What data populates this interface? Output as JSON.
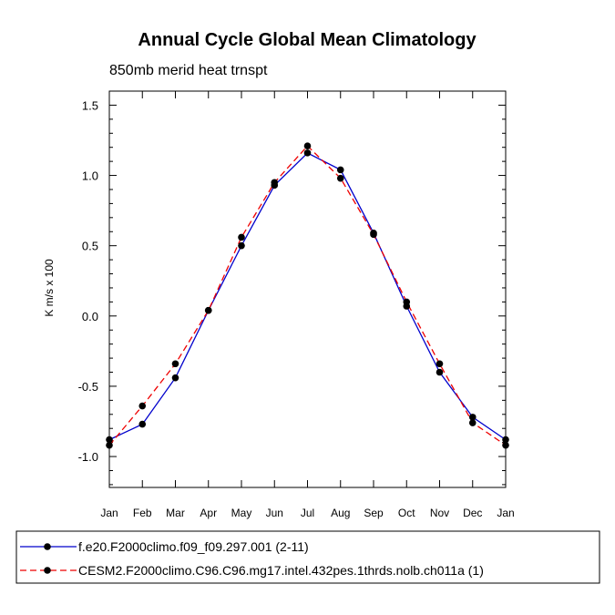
{
  "chart_data": {
    "type": "line",
    "title": "Annual Cycle Global Mean Climatology",
    "subtitle": "850mb merid heat trnspt",
    "xlabel": "",
    "ylabel": "K m/s x 100",
    "categories": [
      "Jan",
      "Feb",
      "Mar",
      "Apr",
      "May",
      "Jun",
      "Jul",
      "Aug",
      "Sep",
      "Oct",
      "Nov",
      "Dec",
      "Jan"
    ],
    "ylim": [
      -1.22,
      1.6
    ],
    "yticks": [
      1.5,
      1.0,
      0.5,
      0.0,
      -0.5,
      -1.0
    ],
    "ytick_labels": [
      "1.5",
      "1.0",
      "0.5",
      "0.0",
      "-0.5",
      "-1.0"
    ],
    "legend_position": "bottom",
    "series": [
      {
        "name": "f.e20.F2000climo.f09_f09.297.001 (2-11)",
        "color": "#0000cc",
        "dash": "solid",
        "values": [
          -0.88,
          -0.77,
          -0.44,
          0.04,
          0.5,
          0.93,
          1.16,
          1.04,
          0.59,
          0.07,
          -0.4,
          -0.72,
          -0.88
        ]
      },
      {
        "name": "CESM2.F2000climo.C96.C96.mg17.intel.432pes.1thrds.nolb.ch011a (1)",
        "color": "#ee0000",
        "dash": "dashed",
        "values": [
          -0.92,
          -0.64,
          -0.34,
          0.04,
          0.56,
          0.95,
          1.21,
          0.98,
          0.58,
          0.1,
          -0.34,
          -0.76,
          -0.92
        ]
      }
    ]
  }
}
